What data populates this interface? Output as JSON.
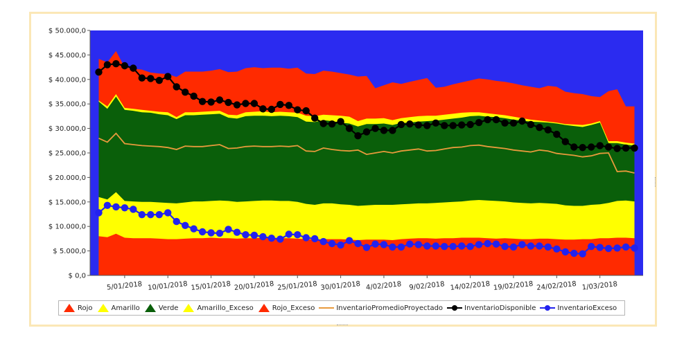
{
  "chart_data": {
    "type": "area",
    "y_ticks": [
      "$ 0,0",
      "$ 5.000,0",
      "$ 10.000,0",
      "$ 15.000,0",
      "$ 20.000,0",
      "$ 25.000,0",
      "$ 30.000,0",
      "$ 35.000,0",
      "$ 40.000,0",
      "$ 45.000,0",
      "$ 50.000,0"
    ],
    "ylim": [
      0,
      50000
    ],
    "x_start": "2018-01-01",
    "x_end": "2018-03-06",
    "x_ticks": [
      {
        "date": "2018-01-05",
        "label": "5/01/2018"
      },
      {
        "date": "2018-01-10",
        "label": "10/01/2018"
      },
      {
        "date": "2018-01-15",
        "label": "15/01/2018"
      },
      {
        "date": "2018-01-20",
        "label": "20/01/2018"
      },
      {
        "date": "2018-01-25",
        "label": "25/01/2018"
      },
      {
        "date": "2018-01-30",
        "label": "30/01/2018"
      },
      {
        "date": "2018-02-04",
        "label": "4/02/2018"
      },
      {
        "date": "2018-02-09",
        "label": "9/02/2018"
      },
      {
        "date": "2018-02-14",
        "label": "14/02/2018"
      },
      {
        "date": "2018-02-19",
        "label": "19/02/2018"
      },
      {
        "date": "2018-02-24",
        "label": "24/02/2018"
      },
      {
        "date": "2018-03-01",
        "label": "1/03/2018"
      }
    ],
    "colors": {
      "background": "#2b2bf0",
      "rojo": "#ff2a00",
      "amarillo": "#ffff00",
      "verde": "#0a5f0a",
      "amarillo_exceso": "#ffff00",
      "rojo_exceso": "#ff2a00",
      "promedio": "#e89a3c",
      "disponible": "#000000",
      "exceso": "#2222ee"
    },
    "dates": [
      "2018-01-02",
      "2018-01-03",
      "2018-01-04",
      "2018-01-05",
      "2018-01-06",
      "2018-01-07",
      "2018-01-08",
      "2018-01-09",
      "2018-01-10",
      "2018-01-11",
      "2018-01-12",
      "2018-01-13",
      "2018-01-14",
      "2018-01-15",
      "2018-01-16",
      "2018-01-17",
      "2018-01-18",
      "2018-01-19",
      "2018-01-20",
      "2018-01-21",
      "2018-01-22",
      "2018-01-23",
      "2018-01-24",
      "2018-01-25",
      "2018-01-26",
      "2018-01-27",
      "2018-01-28",
      "2018-01-29",
      "2018-01-30",
      "2018-01-31",
      "2018-02-01",
      "2018-02-02",
      "2018-02-03",
      "2018-02-04",
      "2018-02-05",
      "2018-02-06",
      "2018-02-07",
      "2018-02-08",
      "2018-02-09",
      "2018-02-10",
      "2018-02-11",
      "2018-02-12",
      "2018-02-13",
      "2018-02-14",
      "2018-02-15",
      "2018-02-16",
      "2018-02-17",
      "2018-02-18",
      "2018-02-19",
      "2018-02-20",
      "2018-02-21",
      "2018-02-22",
      "2018-02-23",
      "2018-02-24",
      "2018-02-25",
      "2018-02-26",
      "2018-02-27",
      "2018-02-28",
      "2018-03-01",
      "2018-03-02",
      "2018-03-03",
      "2018-03-04",
      "2018-03-05"
    ],
    "series": [
      {
        "name": "Rojo",
        "kind": "area",
        "values": [
          8000,
          7800,
          8500,
          7700,
          7600,
          7600,
          7600,
          7500,
          7400,
          7400,
          7500,
          7600,
          7600,
          7700,
          7600,
          7600,
          7500,
          7600,
          7600,
          7700,
          7700,
          7600,
          7600,
          7500,
          7400,
          7300,
          7400,
          7400,
          7400,
          7300,
          7200,
          7300,
          7300,
          7300,
          7200,
          7400,
          7500,
          7600,
          7600,
          7500,
          7600,
          7600,
          7700,
          7700,
          7700,
          7600,
          7500,
          7600,
          7500,
          7400,
          7400,
          7500,
          7500,
          7400,
          7300,
          7300,
          7400,
          7400,
          7600,
          7600,
          7700,
          7700,
          7600
        ]
      },
      {
        "name": "Amarillo",
        "kind": "area",
        "values": [
          16000,
          15500,
          17000,
          15200,
          15100,
          15000,
          15000,
          14900,
          14800,
          14700,
          14900,
          15100,
          15100,
          15200,
          15300,
          15200,
          15000,
          15100,
          15200,
          15300,
          15300,
          15200,
          15200,
          15000,
          14600,
          14400,
          14700,
          14700,
          14500,
          14400,
          14200,
          14300,
          14400,
          14400,
          14400,
          14500,
          14600,
          14700,
          14700,
          14800,
          14900,
          15000,
          15100,
          15300,
          15400,
          15300,
          15200,
          15100,
          14900,
          14800,
          14700,
          14800,
          14700,
          14600,
          14300,
          14200,
          14200,
          14400,
          14500,
          14800,
          15200,
          15300,
          15100
        ]
      },
      {
        "name": "Verde",
        "kind": "area",
        "values": [
          35500,
          34000,
          36500,
          33800,
          33600,
          33300,
          33200,
          32900,
          32700,
          31900,
          32700,
          32700,
          32800,
          32900,
          33000,
          32200,
          32000,
          32500,
          32600,
          32600,
          32500,
          32600,
          32500,
          32300,
          31400,
          31300,
          31700,
          31500,
          31200,
          31000,
          30400,
          30900,
          30900,
          31000,
          30700,
          31100,
          31200,
          31400,
          31500,
          31600,
          31800,
          32000,
          32200,
          32500,
          32600,
          32400,
          32300,
          32100,
          31800,
          31600,
          31400,
          31300,
          31200,
          31000,
          30700,
          30500,
          30300,
          30700,
          31200,
          27000,
          27000,
          26700,
          26500
        ]
      },
      {
        "name": "Amarillo_Exceso",
        "kind": "area",
        "values": [
          35700,
          34500,
          37000,
          34200,
          34000,
          33800,
          33600,
          33400,
          33300,
          32300,
          33300,
          33300,
          33400,
          33500,
          33600,
          32800,
          32700,
          33300,
          33400,
          33500,
          33300,
          33400,
          33300,
          33200,
          32600,
          32500,
          32800,
          32700,
          32600,
          32400,
          31500,
          32000,
          32000,
          32100,
          31700,
          32100,
          32300,
          32500,
          32600,
          32600,
          32800,
          33000,
          33200,
          33300,
          33300,
          33100,
          32900,
          32700,
          32400,
          32100,
          31800,
          31600,
          31400,
          31200,
          30900,
          30800,
          30700,
          31000,
          31500,
          27400,
          27400,
          27100,
          26900
        ]
      },
      {
        "name": "Rojo_Exceso",
        "kind": "area",
        "values": [
          44200,
          43500,
          45800,
          42500,
          42200,
          42000,
          41400,
          41200,
          41100,
          40500,
          41600,
          41600,
          41600,
          41800,
          42100,
          41500,
          41600,
          42300,
          42500,
          42300,
          42400,
          42400,
          42200,
          42400,
          41200,
          41100,
          41800,
          41600,
          41300,
          41000,
          40600,
          40700,
          38200,
          38800,
          39400,
          39100,
          39500,
          39900,
          40300,
          38300,
          38500,
          39000,
          39400,
          39800,
          40200,
          40000,
          39700,
          39500,
          39200,
          38800,
          38500,
          38200,
          38700,
          38500,
          37500,
          37200,
          37000,
          36600,
          36400,
          37600,
          38000,
          34500,
          34500
        ]
      },
      {
        "name": "InventarioPromedioProyectado",
        "kind": "line",
        "values": [
          28000,
          27200,
          29000,
          26900,
          26700,
          26500,
          26400,
          26300,
          26100,
          25700,
          26400,
          26300,
          26300,
          26500,
          26700,
          25900,
          26000,
          26300,
          26400,
          26300,
          26300,
          26400,
          26300,
          26500,
          25400,
          25300,
          26000,
          25700,
          25500,
          25400,
          25600,
          24700,
          25000,
          25300,
          25000,
          25400,
          25600,
          25800,
          25400,
          25500,
          25800,
          26100,
          26200,
          26500,
          26600,
          26300,
          26100,
          25900,
          25600,
          25400,
          25200,
          25600,
          25400,
          24900,
          24700,
          24500,
          24200,
          24400,
          24900,
          25000,
          21200,
          21300,
          20900
        ]
      },
      {
        "name": "InventarioDisponible",
        "kind": "line-markers",
        "values": [
          41500,
          43000,
          43200,
          42800,
          42300,
          40300,
          40200,
          39800,
          40600,
          38500,
          37400,
          36600,
          35500,
          35400,
          35800,
          35300,
          34800,
          35100,
          35100,
          34000,
          33900,
          34900,
          34700,
          33800,
          33600,
          32100,
          31000,
          30900,
          31400,
          30000,
          28500,
          29300,
          30000,
          29600,
          29600,
          30800,
          30900,
          30700,
          30600,
          31100,
          30600,
          30600,
          30700,
          30800,
          31200,
          31800,
          31800,
          31100,
          31100,
          31500,
          30800,
          30200,
          29700,
          28800,
          27300,
          26200,
          26100,
          26200,
          26500,
          26200,
          25900,
          26000,
          26000
        ]
      },
      {
        "name": "InventarioExceso",
        "kind": "line-markers",
        "values": [
          12800,
          14300,
          14000,
          13800,
          13500,
          12400,
          12400,
          12400,
          12800,
          11000,
          10200,
          9500,
          8900,
          8700,
          8600,
          9400,
          8800,
          8300,
          8200,
          7900,
          7600,
          7400,
          8400,
          8300,
          7700,
          7500,
          6900,
          6500,
          6200,
          7100,
          6500,
          5700,
          6400,
          6300,
          5800,
          5800,
          6400,
          6300,
          6000,
          6000,
          5900,
          5900,
          6000,
          5900,
          6300,
          6500,
          6400,
          5900,
          5800,
          6300,
          6000,
          6000,
          5800,
          5400,
          4800,
          4500,
          4400,
          5900,
          5700,
          5500,
          5600,
          5800,
          5600
        ]
      }
    ]
  }
}
